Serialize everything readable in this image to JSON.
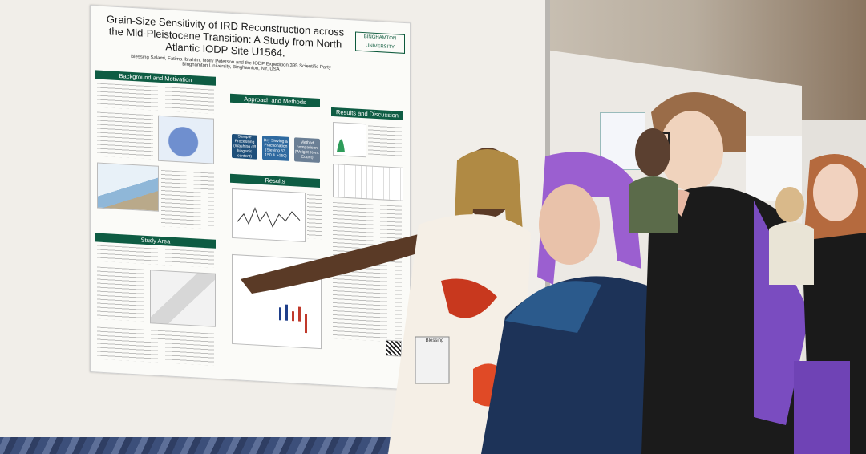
{
  "poster": {
    "title": "Grain-Size Sensitivity of IRD Reconstruction across the Mid-Pleistocene Transition: A Study from North Atlantic IODP Site U1564.",
    "authors": "Blessing Salami, Fatima Ibrahim, Molly Peterson and the IODP Expedition 395 Scientific Party",
    "affiliation": "Binghamton University, Binghamton, NY, USA",
    "logo": "BINGHAMTON UNIVERSITY",
    "sections": {
      "background": "Background and Motivation",
      "approach": "Approach and Methods",
      "results_discussion": "Results and Discussion",
      "results": "Results",
      "study_area": "Study Area"
    },
    "flow_steps": [
      "Sample Processing (Washing off biogenic content)",
      "Dry Sieving & Fractionation (Sieving 63, 150 & >150)",
      "Method comparison (Weight % vs. Count)"
    ]
  },
  "badge": {
    "name": "Blessing"
  }
}
